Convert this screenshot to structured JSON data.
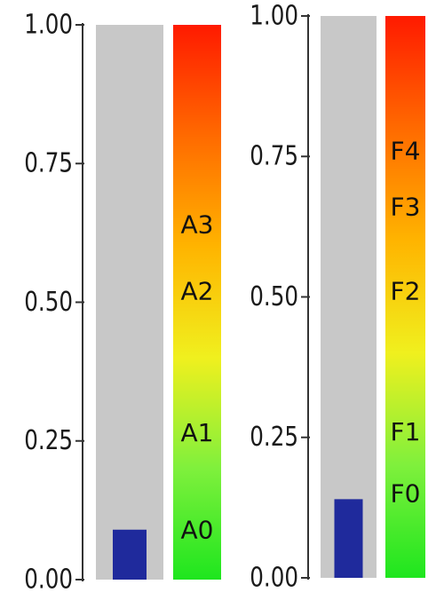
{
  "chart_data": [
    {
      "type": "bar",
      "orientation": "vertical-gauge",
      "ylim": [
        0,
        1
      ],
      "y_ticks": [
        0.0,
        0.25,
        0.5,
        0.75,
        1.0
      ],
      "y_tick_labels": [
        "0.00",
        "0.25",
        "0.50",
        "0.75",
        "1.00"
      ],
      "value": 0.09,
      "bar_color": "#1f2a9c",
      "track_color": "#c8c8c8",
      "scale": {
        "gradient": [
          "#1ee61e",
          "#7ff03c",
          "#f0f01e",
          "#ffb400",
          "#ff6a00",
          "#ff1a00"
        ],
        "labels": [
          {
            "text": "A0",
            "value": 0.09
          },
          {
            "text": "A1",
            "value": 0.265
          },
          {
            "text": "A2",
            "value": 0.52
          },
          {
            "text": "A3",
            "value": 0.64
          }
        ]
      }
    },
    {
      "type": "bar",
      "orientation": "vertical-gauge",
      "ylim": [
        0,
        1
      ],
      "y_ticks": [
        0.0,
        0.25,
        0.5,
        0.75,
        1.0
      ],
      "y_tick_labels": [
        "0.00",
        "0.25",
        "0.50",
        "0.75",
        "1.00"
      ],
      "value": 0.14,
      "bar_color": "#1f2a9c",
      "track_color": "#c8c8c8",
      "scale": {
        "gradient": [
          "#1ee61e",
          "#7ff03c",
          "#f0f01e",
          "#ffb400",
          "#ff6a00",
          "#ff1a00"
        ],
        "labels": [
          {
            "text": "F0",
            "value": 0.15
          },
          {
            "text": "F1",
            "value": 0.26
          },
          {
            "text": "F2",
            "value": 0.51
          },
          {
            "text": "F3",
            "value": 0.66
          },
          {
            "text": "F4",
            "value": 0.76
          }
        ]
      }
    }
  ]
}
